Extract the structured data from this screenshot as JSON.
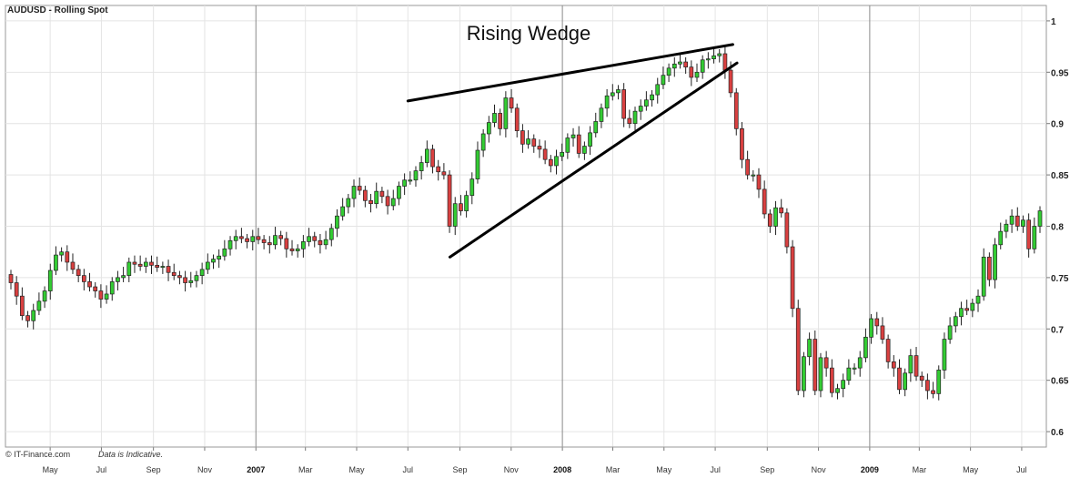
{
  "chart_data": {
    "type": "candlestick",
    "title": "AUDUSD - Rolling Spot",
    "annotation": "Rising Wedge",
    "y_ticks": [
      "1",
      "0.95",
      "0.9",
      "0.85",
      "0.8",
      "0.75",
      "0.7",
      "0.65",
      "0.6"
    ],
    "y_tick_values": [
      1.0,
      0.95,
      0.9,
      0.85,
      0.8,
      0.75,
      0.7,
      0.65,
      0.6
    ],
    "ylim": [
      0.585,
      1.015
    ],
    "grid": true,
    "x_ticks": [
      {
        "label": "May",
        "date": "2006-05-01"
      },
      {
        "label": "Jul",
        "date": "2006-07-01"
      },
      {
        "label": "Sep",
        "date": "2006-09-01"
      },
      {
        "label": "Nov",
        "date": "2006-11-01"
      },
      {
        "label": "2007",
        "date": "2007-01-01",
        "year": true
      },
      {
        "label": "Mar",
        "date": "2007-03-01"
      },
      {
        "label": "May",
        "date": "2007-05-01"
      },
      {
        "label": "Jul",
        "date": "2007-07-01"
      },
      {
        "label": "Sep",
        "date": "2007-09-01"
      },
      {
        "label": "Nov",
        "date": "2007-11-01"
      },
      {
        "label": "2008",
        "date": "2008-01-01",
        "year": true
      },
      {
        "label": "Mar",
        "date": "2008-03-01"
      },
      {
        "label": "May",
        "date": "2008-05-01"
      },
      {
        "label": "Jul",
        "date": "2008-07-01"
      },
      {
        "label": "Sep",
        "date": "2008-09-01"
      },
      {
        "label": "Nov",
        "date": "2008-11-01"
      },
      {
        "label": "2009",
        "date": "2009-01-01",
        "year": true
      },
      {
        "label": "Mar",
        "date": "2009-03-01"
      },
      {
        "label": "May",
        "date": "2009-05-01"
      },
      {
        "label": "Jul",
        "date": "2009-07-01"
      }
    ],
    "x_range": [
      "2006-03-12",
      "2009-07-26"
    ],
    "closes": [
      0.745,
      0.732,
      0.713,
      0.708,
      0.718,
      0.727,
      0.737,
      0.757,
      0.772,
      0.775,
      0.765,
      0.758,
      0.752,
      0.746,
      0.741,
      0.737,
      0.729,
      0.734,
      0.746,
      0.75,
      0.752,
      0.765,
      0.763,
      0.761,
      0.765,
      0.762,
      0.76,
      0.761,
      0.755,
      0.752,
      0.75,
      0.745,
      0.747,
      0.752,
      0.758,
      0.765,
      0.768,
      0.771,
      0.778,
      0.786,
      0.79,
      0.788,
      0.785,
      0.79,
      0.787,
      0.784,
      0.782,
      0.791,
      0.788,
      0.778,
      0.776,
      0.778,
      0.785,
      0.79,
      0.786,
      0.782,
      0.787,
      0.798,
      0.81,
      0.819,
      0.827,
      0.839,
      0.835,
      0.825,
      0.822,
      0.834,
      0.829,
      0.82,
      0.827,
      0.839,
      0.845,
      0.845,
      0.854,
      0.862,
      0.875,
      0.858,
      0.853,
      0.85,
      0.8,
      0.822,
      0.815,
      0.83,
      0.846,
      0.874,
      0.89,
      0.901,
      0.91,
      0.895,
      0.925,
      0.915,
      0.893,
      0.88,
      0.885,
      0.878,
      0.875,
      0.865,
      0.859,
      0.868,
      0.872,
      0.886,
      0.889,
      0.871,
      0.878,
      0.891,
      0.902,
      0.915,
      0.927,
      0.93,
      0.933,
      0.905,
      0.9,
      0.912,
      0.917,
      0.923,
      0.928,
      0.938,
      0.947,
      0.954,
      0.958,
      0.96,
      0.955,
      0.945,
      0.95,
      0.962,
      0.963,
      0.966,
      0.968,
      0.952,
      0.93,
      0.895,
      0.865,
      0.85,
      0.85,
      0.836,
      0.812,
      0.8,
      0.818,
      0.813,
      0.78,
      0.72,
      0.64,
      0.673,
      0.69,
      0.64,
      0.672,
      0.662,
      0.638,
      0.642,
      0.65,
      0.662,
      0.662,
      0.672,
      0.692,
      0.71,
      0.703,
      0.69,
      0.668,
      0.662,
      0.641,
      0.657,
      0.674,
      0.654,
      0.65,
      0.64,
      0.637,
      0.66,
      0.69,
      0.703,
      0.712,
      0.72,
      0.718,
      0.725,
      0.732,
      0.77,
      0.748,
      0.782,
      0.795,
      0.802,
      0.81,
      0.8,
      0.806,
      0.778,
      0.8,
      0.815
    ],
    "trendlines": [
      {
        "from": {
          "date": "2007-07-01",
          "value": 0.922
        },
        "to": {
          "date": "2008-07-22",
          "value": 0.977
        }
      },
      {
        "from": {
          "date": "2007-08-20",
          "value": 0.77
        },
        "to": {
          "date": "2008-07-27",
          "value": 0.959
        }
      }
    ],
    "footer_source": "© IT-Finance.com",
    "footer_note": "Data is Indicative."
  }
}
